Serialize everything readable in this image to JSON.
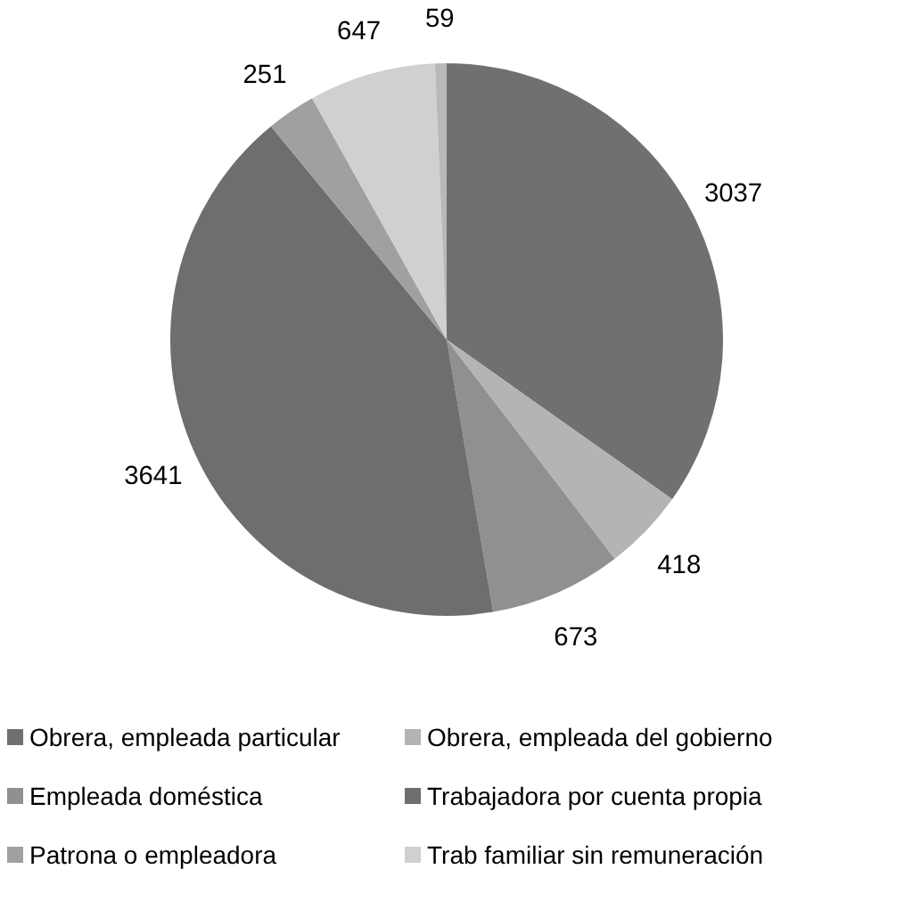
{
  "chart_data": {
    "type": "pie",
    "categories": [
      "Obrera, empleada particular",
      "Obrera, empleada del gobierno",
      "Empleada doméstica",
      "Trabajadora por cuenta propia",
      "Patrona o empleadora",
      "Trab familiar sin remuneración",
      null
    ],
    "values": [
      3037,
      418,
      673,
      3641,
      251,
      647,
      59
    ],
    "colors": [
      "#707070",
      "#b4b4b4",
      "#909090",
      "#6e6e6e",
      "#a0a0a0",
      "#d0d0d0",
      "#b8b8b8"
    ],
    "data_labels": true,
    "legend": "bottom"
  }
}
